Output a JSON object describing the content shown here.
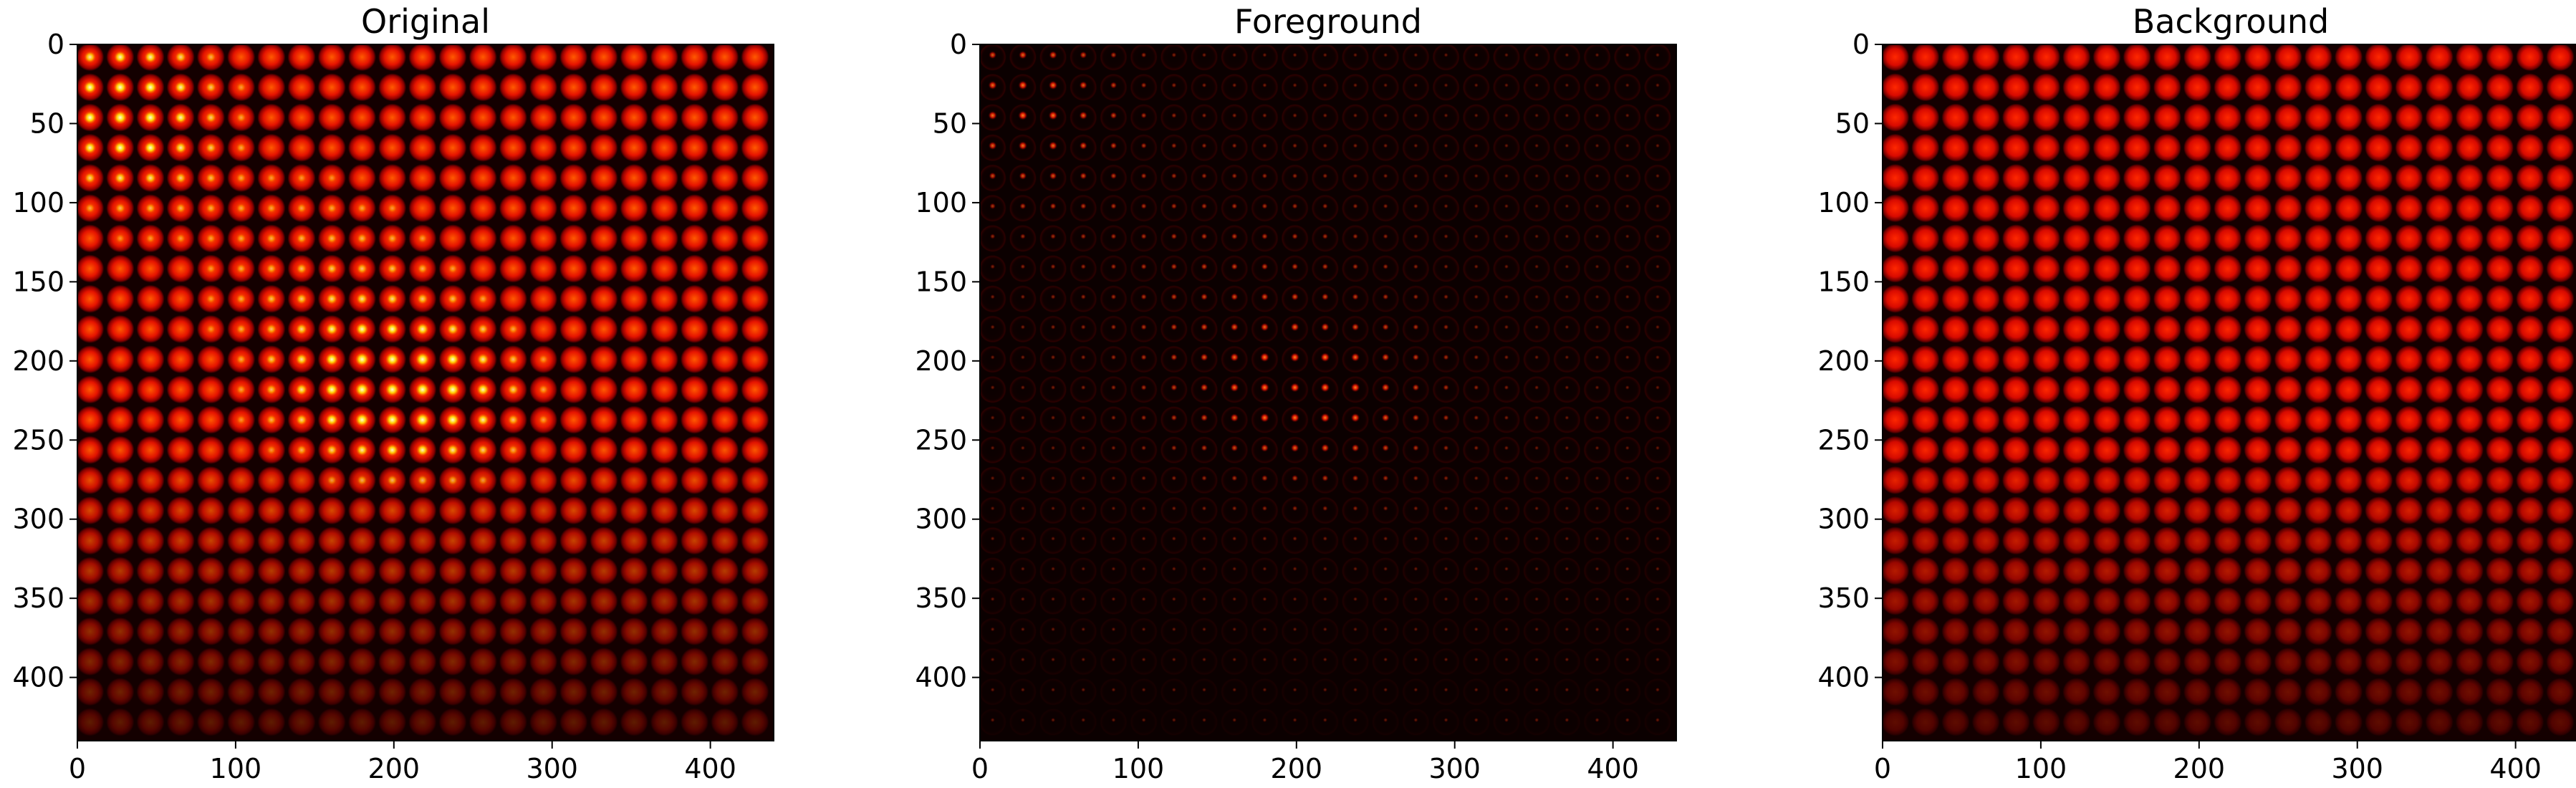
{
  "chart_data": [
    {
      "type": "heatmap",
      "title": "Original",
      "colormap": "hot",
      "xlim": [
        0,
        440
      ],
      "ylim": [
        440,
        0
      ],
      "xticks": [
        0,
        100,
        200,
        300,
        400
      ],
      "yticks": [
        0,
        50,
        100,
        150,
        200,
        250,
        300,
        350,
        400
      ],
      "grid": {
        "rows": 23,
        "cols": 23,
        "spacing": 19.1
      },
      "content": "array of bright red circular spots; strongest yellow-white cores upper-left and around x 150-250, y 200-250; dimmer toward bottom rows"
    },
    {
      "type": "heatmap",
      "title": "Foreground",
      "colormap": "hot",
      "xlim": [
        0,
        440
      ],
      "ylim": [
        440,
        0
      ],
      "xticks": [
        0,
        100,
        200,
        300,
        400
      ],
      "yticks": [
        0,
        50,
        100,
        150,
        200,
        250,
        300,
        350,
        400
      ],
      "grid": {
        "rows": 23,
        "cols": 23,
        "spacing": 19.1
      },
      "content": "mostly black; faint dark-red rings with small bright points, brightest near x 150-250, y 200-250"
    },
    {
      "type": "heatmap",
      "title": "Background",
      "colormap": "hot",
      "xlim": [
        0,
        440
      ],
      "ylim": [
        440,
        0
      ],
      "xticks": [
        0,
        100,
        200,
        300,
        400
      ],
      "yticks": [
        0,
        50,
        100,
        150,
        200,
        250,
        300,
        350,
        400
      ],
      "grid": {
        "rows": 23,
        "cols": 23,
        "spacing": 19.1
      },
      "content": "smooth uniform red circular spots without bright cores; dimmer toward bottom rows"
    }
  ]
}
